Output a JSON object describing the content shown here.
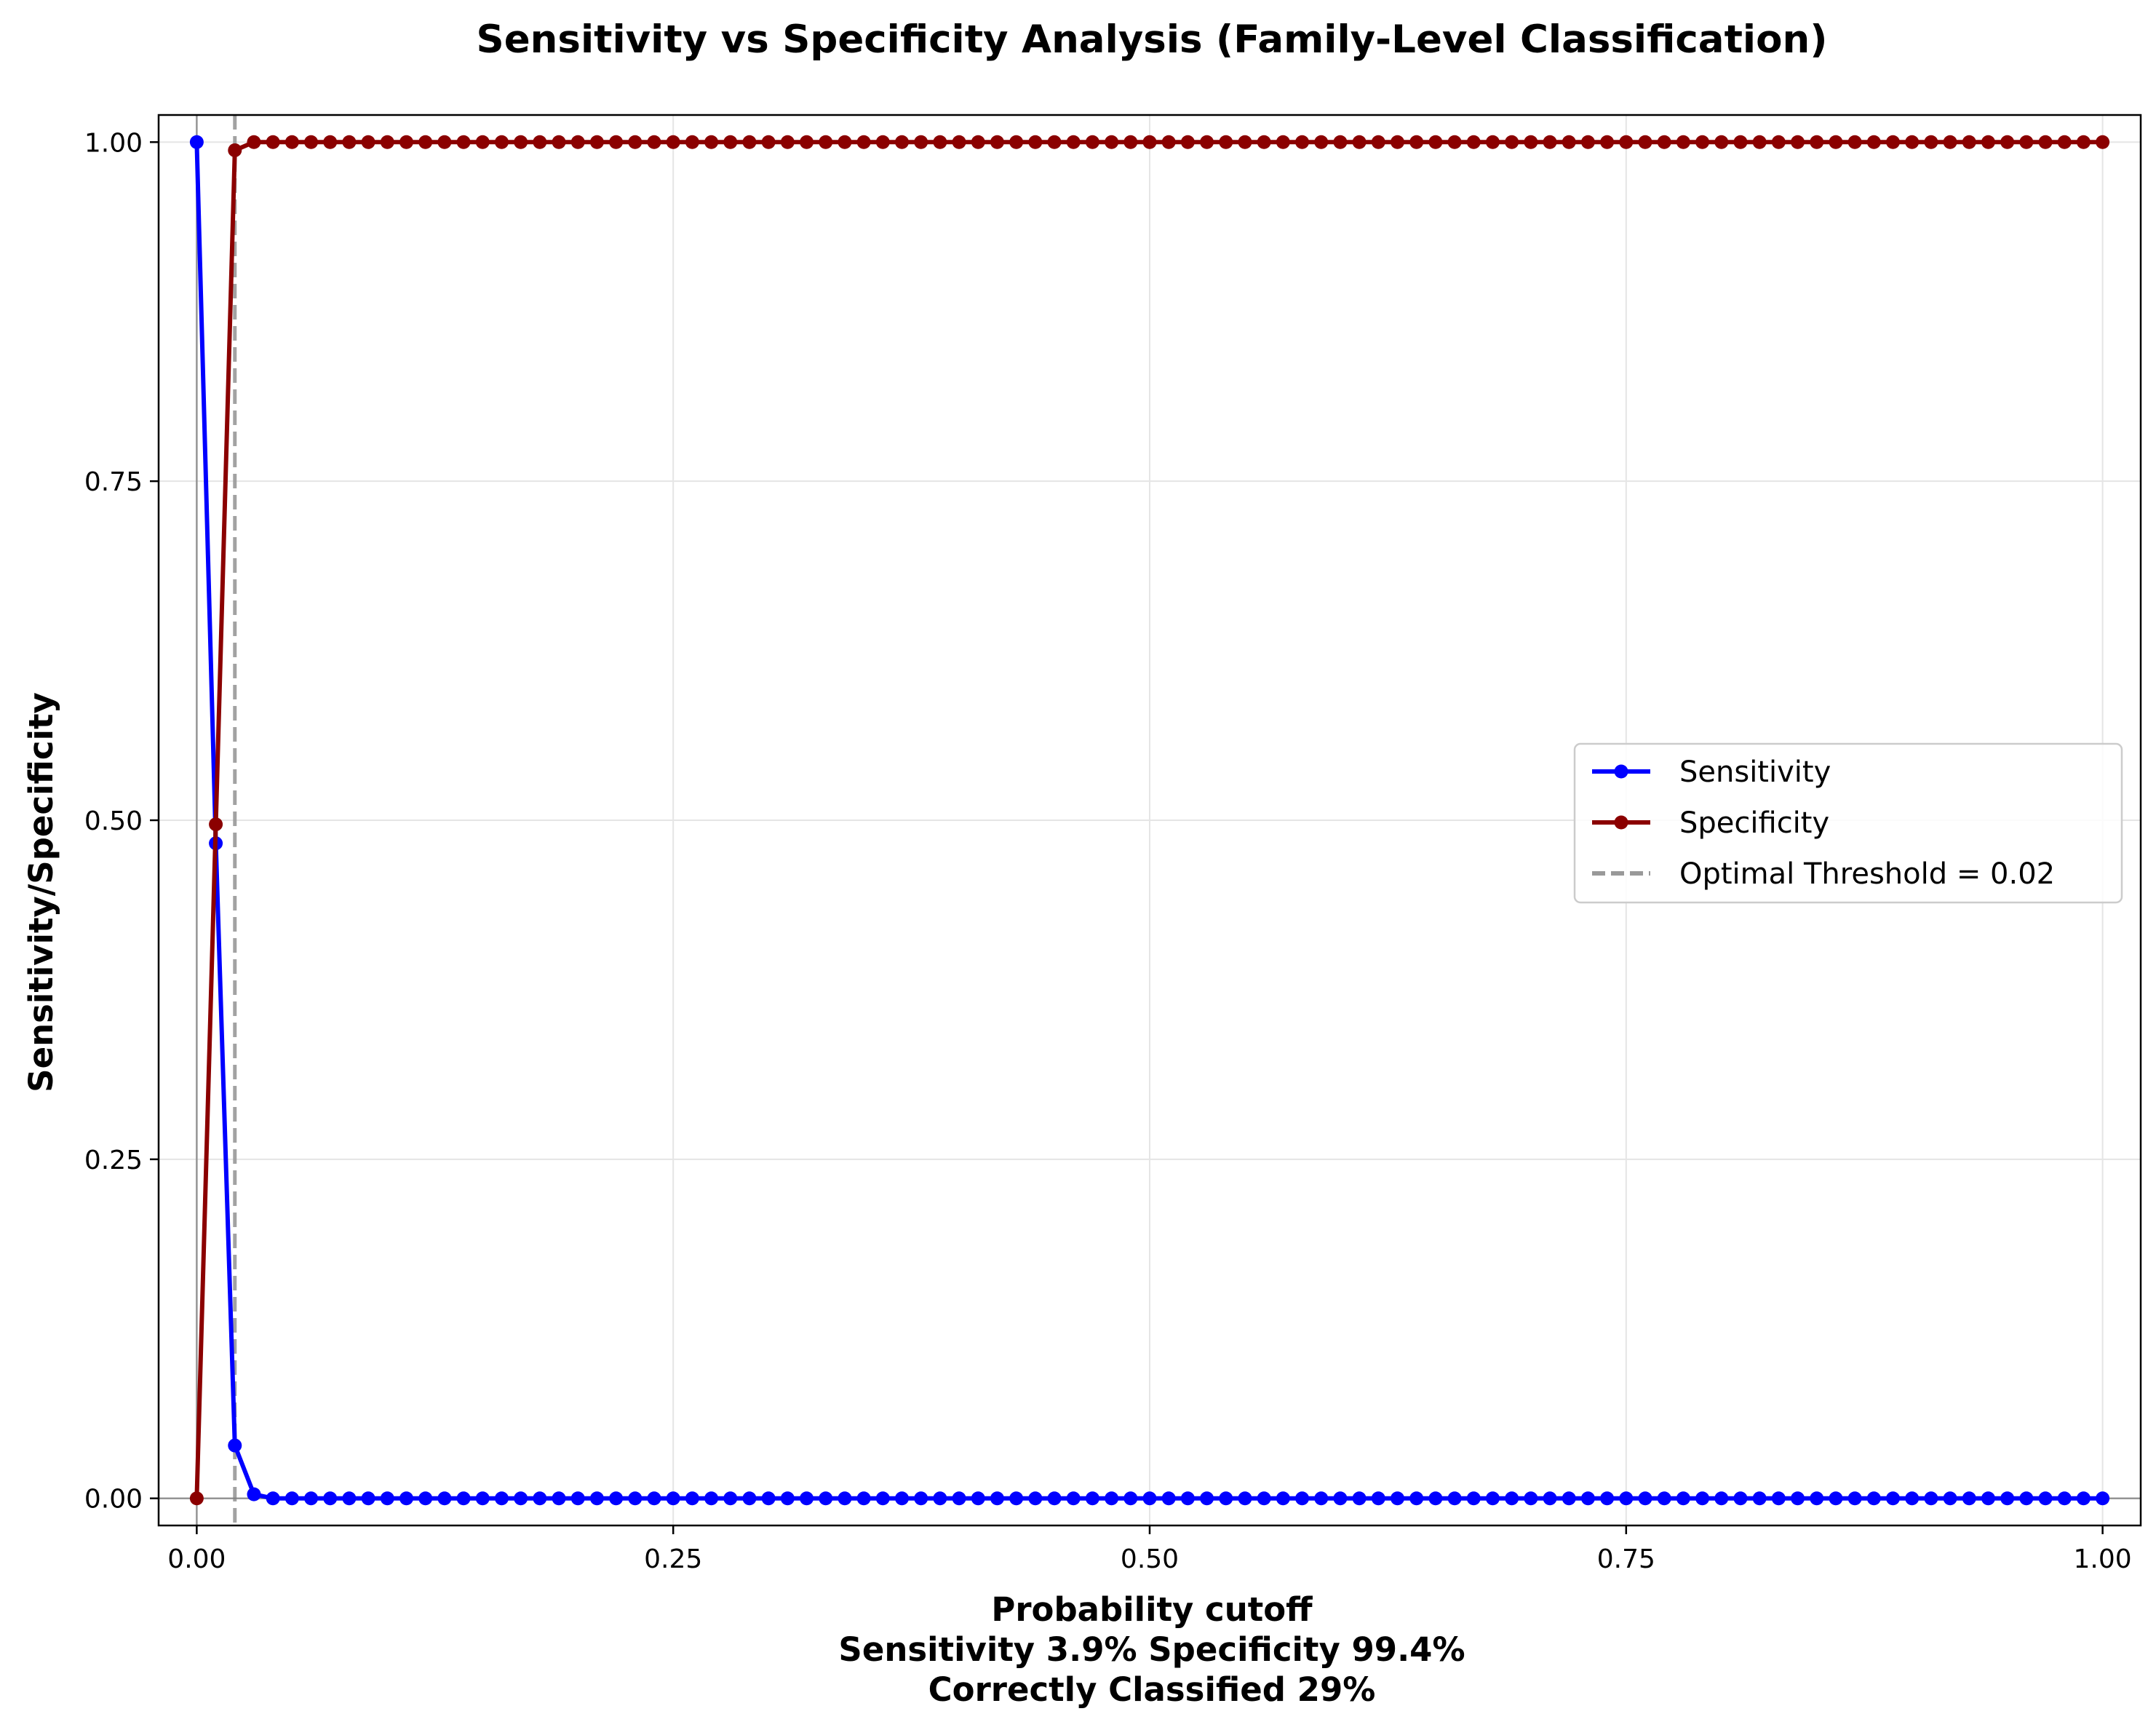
{
  "chart_data": {
    "type": "line",
    "title": "Sensitivity vs Specificity Analysis (Family-Level Classification)",
    "xlabel": "Probability cutoff",
    "xlabel_lines": [
      "Probability cutoff",
      "Sensitivity 3.9% Specificity 99.4%",
      "Correctly Classified 29%"
    ],
    "ylabel": "Sensitivity/Specificity",
    "xlim": [
      -0.02,
      1.02
    ],
    "ylim": [
      -0.02,
      1.02
    ],
    "xticks": [
      0.0,
      0.25,
      0.5,
      0.75,
      1.0
    ],
    "xtick_labels": [
      "0.00",
      "0.25",
      "0.50",
      "0.75",
      "1.00"
    ],
    "yticks": [
      0.0,
      0.25,
      0.5,
      0.75,
      1.0
    ],
    "ytick_labels": [
      "0.00",
      "0.25",
      "0.50",
      "0.75",
      "1.00"
    ],
    "grid": true,
    "legend_position": "center-right",
    "x_start": 0.0,
    "x_end": 1.0,
    "x_step": 0.01,
    "series": [
      {
        "name": "Sensitivity",
        "color": "#0000ff",
        "marker": "circle",
        "values_head": [
          1.0,
          0.483,
          0.039,
          0.003
        ],
        "tail_value": 0.0
      },
      {
        "name": "Specificity",
        "color": "#8b0000",
        "marker": "circle",
        "values_head": [
          0.0,
          0.497,
          0.994,
          1.0
        ],
        "tail_value": 1.0
      }
    ],
    "reference_lines": [
      {
        "name": "Optimal Threshold = 0.02",
        "orientation": "vertical",
        "x": 0.02,
        "color": "#999999",
        "style": "dashed"
      },
      {
        "orientation": "horizontal",
        "y": 0.0,
        "color": "#808080",
        "style": "solid"
      },
      {
        "orientation": "vertical",
        "x": 0.0,
        "color": "#808080",
        "style": "solid"
      }
    ]
  }
}
